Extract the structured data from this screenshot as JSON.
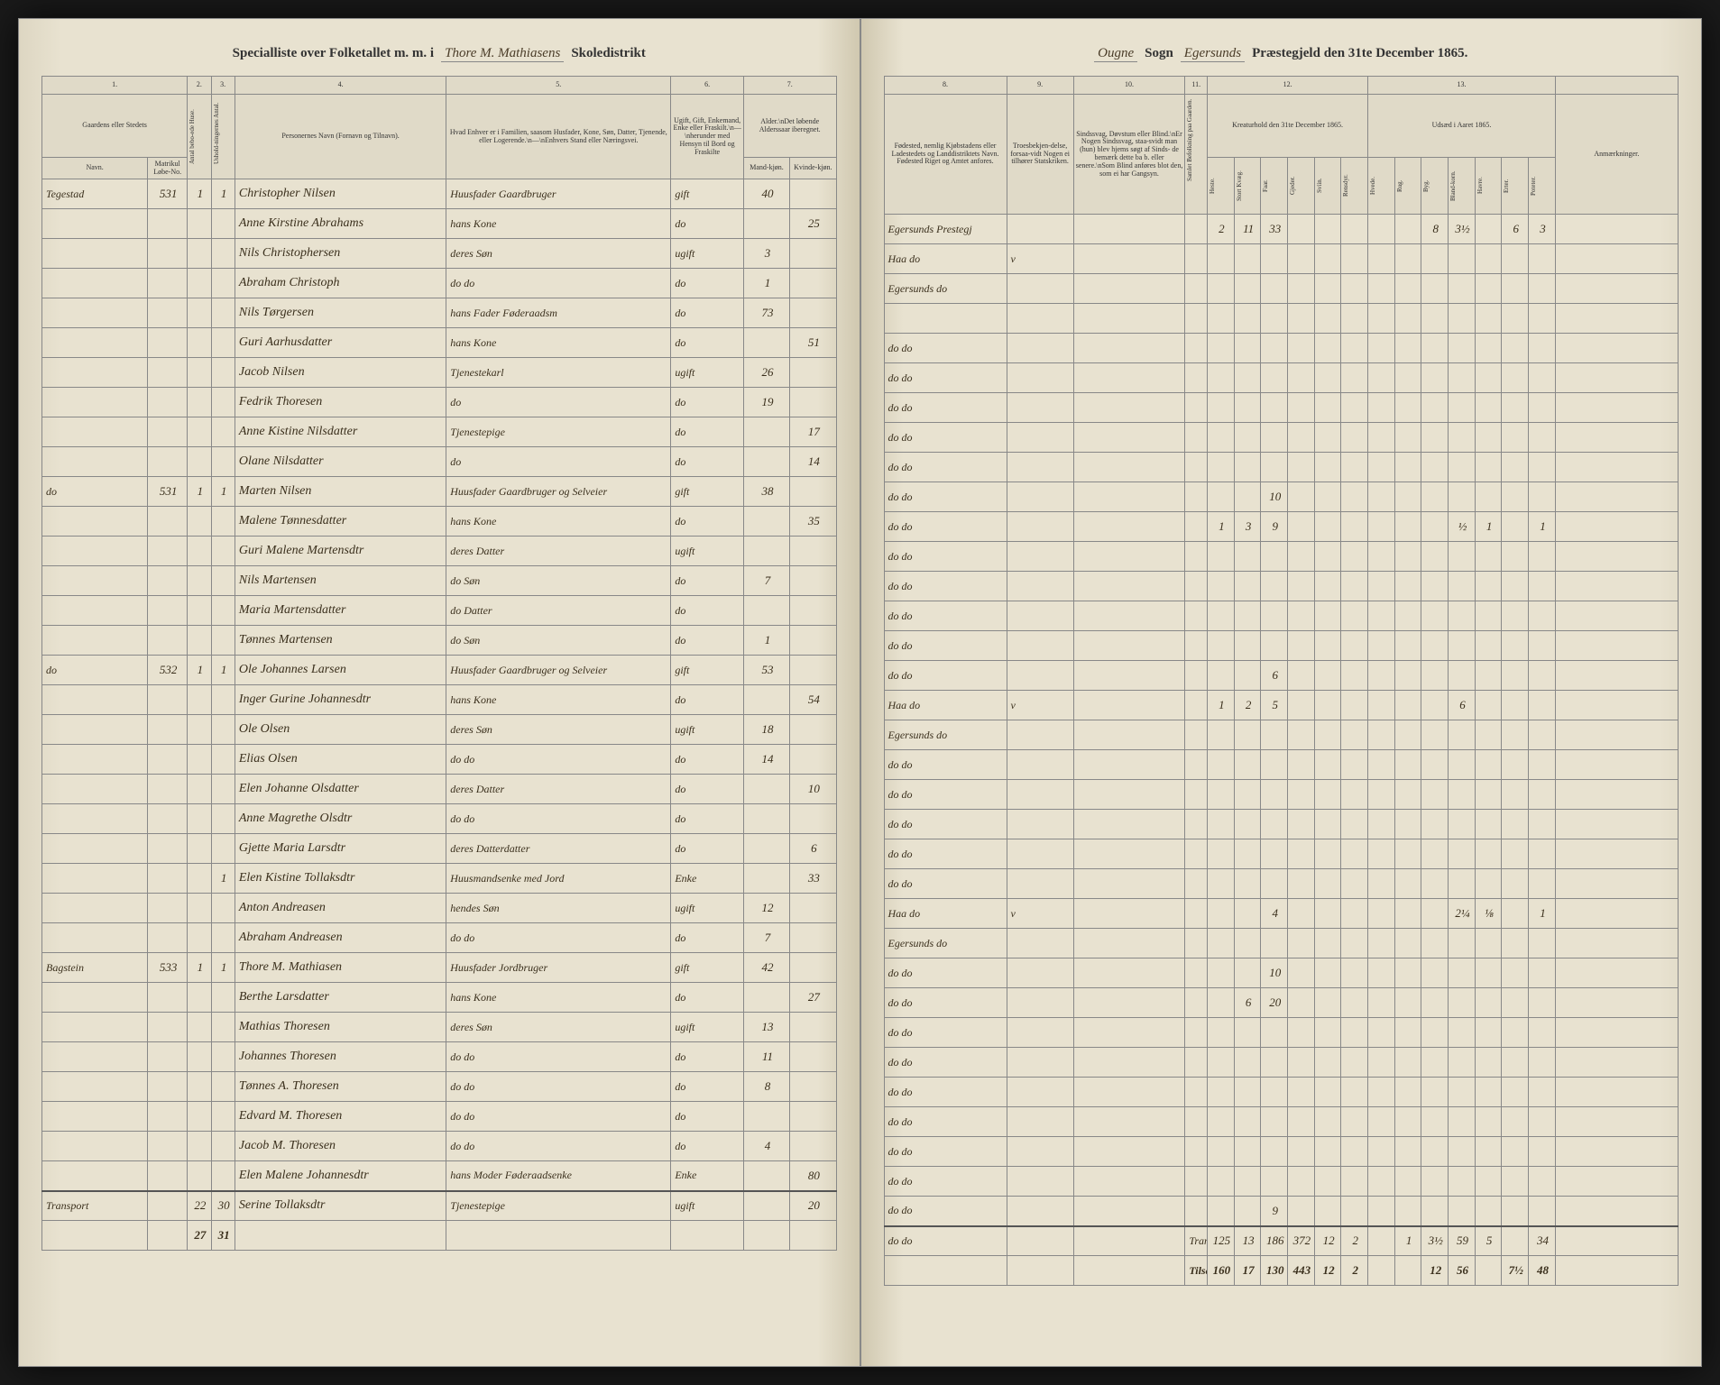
{
  "header_left": {
    "printed1": "Specialliste over Folketallet m. m. i",
    "written": "Thore M. Mathiasens",
    "printed2": "Skoledistrikt"
  },
  "header_right": {
    "written1": "Ougne",
    "printed1": "Sogn",
    "written2": "Egersunds",
    "printed2": "Præstegjeld den 31te December 1865."
  },
  "columns_left": {
    "c1": "1.",
    "c2": "2.",
    "c3": "3.",
    "c4": "4.",
    "c5": "5.",
    "c6": "6.",
    "c7": "7.",
    "d1": "Gaardens eller Stedets",
    "d2": "",
    "d3": "",
    "d4": "Personernes Navn (Fornavn og Tilnavn).",
    "d5": "Hvad Enhver er i Familien, saasom Husfader, Kone, Søn, Datter, Tjenende, eller Logerende.\\n—\\nEnhvers Stand eller Næringsvei.",
    "d6": "Ugift, Gift, Enkemand, Enke eller Fraskilt.\\n—\\nherunder med Hensyn til Bord og Fraskilte",
    "d7": "Alder.\\nDet løbende Alderssaar iberegnet.",
    "s1a": "Navn.",
    "s1b": "Matrikul Løbe-No.",
    "s2": "Antal bebo-ede Huse.",
    "s3": "Ushold-ningernes Antal.",
    "s7a": "Mand-kjøn.",
    "s7b": "Kvinde-kjøn."
  },
  "columns_right": {
    "c8": "8.",
    "c9": "9.",
    "c10": "10.",
    "c11": "11.",
    "c12": "12.",
    "c13": "13.",
    "d8": "Fødested, nemlig Kjøbstadens eller Ladestedets og Landdistriktets Navn. Fødested Riget og Amtet anfores.",
    "d9": "Troesbekjen-delse, forsaa-vidt Nogen ei tilhører Statskriken.",
    "d10": "Sindssvag, Døvstum eller Blind.\\nEr Nogen Sindssvag, staa-svidt man (hun) blev hjems søgt af Sinds- de bemærk dette ba b. eller senere.\\nSom Blind anføres blot den, som ei har Gangsyn.",
    "d11": "",
    "d12": "Kreaturhold den 31te December 1865.",
    "d13": "Udsæd i Aaret 1865.",
    "d14": "Anmærkninger.",
    "s12": [
      "Heste.",
      "Stort Kvæg.",
      "Faar.",
      "Gjeder.",
      "Sviin.",
      "Rensdyr."
    ],
    "s13": [
      "Hvede.",
      "Rug.",
      "Byg.",
      "Bland-korn.",
      "Havre.",
      "Erter.",
      "Poteter."
    ]
  },
  "rows": [
    {
      "gaard": "Tegestad",
      "mat": "531",
      "hus": "1",
      "hh": "1",
      "navn": "Christopher Nilsen",
      "fam": "Huusfader Gaardbruger",
      "stat": "gift",
      "mk": "40",
      "kk": "",
      "fod": "Egersunds Prestegj",
      "tro": "",
      "sind": "",
      "h": "2",
      "sk": "11",
      "f": "33",
      "g": "",
      "sv": "",
      "rn": "",
      "hv": "",
      "ru": "",
      "by": "8",
      "bl": "3½",
      "ha": "",
      "er": "6",
      "po": "3"
    },
    {
      "gaard": "",
      "mat": "",
      "hus": "",
      "hh": "",
      "navn": "Anne Kirstine Abrahams",
      "fam": "hans Kone",
      "stat": "do",
      "mk": "",
      "kk": "25",
      "fod": "Haa do",
      "tro": "v",
      "sind": "",
      "h": "",
      "sk": "",
      "f": "",
      "g": "",
      "sv": "",
      "rn": "",
      "hv": "",
      "ru": "",
      "by": "",
      "bl": "",
      "ha": "",
      "er": "",
      "po": ""
    },
    {
      "gaard": "",
      "mat": "",
      "hus": "",
      "hh": "",
      "navn": "Nils Christophersen",
      "fam": "deres Søn",
      "stat": "ugift",
      "mk": "3",
      "kk": "",
      "fod": "Egersunds do",
      "tro": "",
      "sind": "",
      "h": "",
      "sk": "",
      "f": "",
      "g": "",
      "sv": "",
      "rn": "",
      "hv": "",
      "ru": "",
      "by": "",
      "bl": "",
      "ha": "",
      "er": "",
      "po": ""
    },
    {
      "gaard": "",
      "mat": "",
      "hus": "",
      "hh": "",
      "navn": "Abraham Christoph",
      "fam": "do do",
      "stat": "do",
      "mk": "1",
      "kk": "",
      "fod": "",
      "tro": "",
      "sind": "",
      "h": "",
      "sk": "",
      "f": "",
      "g": "",
      "sv": "",
      "rn": "",
      "hv": "",
      "ru": "",
      "by": "",
      "bl": "",
      "ha": "",
      "er": "",
      "po": ""
    },
    {
      "gaard": "",
      "mat": "",
      "hus": "",
      "hh": "",
      "navn": "Nils Tørgersen",
      "fam": "hans Fader Føderaadsm",
      "stat": "do",
      "mk": "73",
      "kk": "",
      "fod": "do do",
      "tro": "",
      "sind": "",
      "h": "",
      "sk": "",
      "f": "",
      "g": "",
      "sv": "",
      "rn": "",
      "hv": "",
      "ru": "",
      "by": "",
      "bl": "",
      "ha": "",
      "er": "",
      "po": ""
    },
    {
      "gaard": "",
      "mat": "",
      "hus": "",
      "hh": "",
      "navn": "Guri Aarhusdatter",
      "fam": "hans Kone",
      "stat": "do",
      "mk": "",
      "kk": "51",
      "fod": "do do",
      "tro": "",
      "sind": "",
      "h": "",
      "sk": "",
      "f": "",
      "g": "",
      "sv": "",
      "rn": "",
      "hv": "",
      "ru": "",
      "by": "",
      "bl": "",
      "ha": "",
      "er": "",
      "po": ""
    },
    {
      "gaard": "",
      "mat": "",
      "hus": "",
      "hh": "",
      "navn": "Jacob Nilsen",
      "fam": "Tjenestekarl",
      "stat": "ugift",
      "mk": "26",
      "kk": "",
      "fod": "do do",
      "tro": "",
      "sind": "",
      "h": "",
      "sk": "",
      "f": "",
      "g": "",
      "sv": "",
      "rn": "",
      "hv": "",
      "ru": "",
      "by": "",
      "bl": "",
      "ha": "",
      "er": "",
      "po": ""
    },
    {
      "gaard": "",
      "mat": "",
      "hus": "",
      "hh": "",
      "navn": "Fedrik Thoresen",
      "fam": "do",
      "stat": "do",
      "mk": "19",
      "kk": "",
      "fod": "do do",
      "tro": "",
      "sind": "",
      "h": "",
      "sk": "",
      "f": "",
      "g": "",
      "sv": "",
      "rn": "",
      "hv": "",
      "ru": "",
      "by": "",
      "bl": "",
      "ha": "",
      "er": "",
      "po": ""
    },
    {
      "gaard": "",
      "mat": "",
      "hus": "",
      "hh": "",
      "navn": "Anne Kistine Nilsdatter",
      "fam": "Tjenestepige",
      "stat": "do",
      "mk": "",
      "kk": "17",
      "fod": "do do",
      "tro": "",
      "sind": "",
      "h": "",
      "sk": "",
      "f": "",
      "g": "",
      "sv": "",
      "rn": "",
      "hv": "",
      "ru": "",
      "by": "",
      "bl": "",
      "ha": "",
      "er": "",
      "po": ""
    },
    {
      "gaard": "",
      "mat": "",
      "hus": "",
      "hh": "",
      "navn": "Olane Nilsdatter",
      "fam": "do",
      "stat": "do",
      "mk": "",
      "kk": "14",
      "fod": "do do",
      "tro": "",
      "sind": "",
      "h": "",
      "sk": "",
      "f": "10",
      "g": "",
      "sv": "",
      "rn": "",
      "hv": "",
      "ru": "",
      "by": "",
      "bl": "",
      "ha": "",
      "er": "",
      "po": ""
    },
    {
      "gaard": "do",
      "mat": "531",
      "hus": "1",
      "hh": "1",
      "navn": "Marten Nilsen",
      "fam": "Huusfader Gaardbruger og Selveier",
      "stat": "gift",
      "mk": "38",
      "kk": "",
      "fod": "do do",
      "tro": "",
      "sind": "",
      "h": "1",
      "sk": "3",
      "f": "9",
      "g": "",
      "sv": "",
      "rn": "",
      "hv": "",
      "ru": "",
      "by": "",
      "bl": "½",
      "ha": "1",
      "er": "",
      "po": "1"
    },
    {
      "gaard": "",
      "mat": "",
      "hus": "",
      "hh": "",
      "navn": "Malene Tønnesdatter",
      "fam": "hans Kone",
      "stat": "do",
      "mk": "",
      "kk": "35",
      "fod": "do do",
      "tro": "",
      "sind": "",
      "h": "",
      "sk": "",
      "f": "",
      "g": "",
      "sv": "",
      "rn": "",
      "hv": "",
      "ru": "",
      "by": "",
      "bl": "",
      "ha": "",
      "er": "",
      "po": ""
    },
    {
      "gaard": "",
      "mat": "",
      "hus": "",
      "hh": "",
      "navn": "Guri Malene Martensdtr",
      "fam": "deres Datter",
      "stat": "ugift",
      "mk": "",
      "kk": "",
      "fod": "do do",
      "tro": "",
      "sind": "",
      "h": "",
      "sk": "",
      "f": "",
      "g": "",
      "sv": "",
      "rn": "",
      "hv": "",
      "ru": "",
      "by": "",
      "bl": "",
      "ha": "",
      "er": "",
      "po": ""
    },
    {
      "gaard": "",
      "mat": "",
      "hus": "",
      "hh": "",
      "navn": "Nils Martensen",
      "fam": "do Søn",
      "stat": "do",
      "mk": "7",
      "kk": "",
      "fod": "do do",
      "tro": "",
      "sind": "",
      "h": "",
      "sk": "",
      "f": "",
      "g": "",
      "sv": "",
      "rn": "",
      "hv": "",
      "ru": "",
      "by": "",
      "bl": "",
      "ha": "",
      "er": "",
      "po": ""
    },
    {
      "gaard": "",
      "mat": "",
      "hus": "",
      "hh": "",
      "navn": "Maria Martensdatter",
      "fam": "do Datter",
      "stat": "do",
      "mk": "",
      "kk": "",
      "fod": "do do",
      "tro": "",
      "sind": "",
      "h": "",
      "sk": "",
      "f": "",
      "g": "",
      "sv": "",
      "rn": "",
      "hv": "",
      "ru": "",
      "by": "",
      "bl": "",
      "ha": "",
      "er": "",
      "po": ""
    },
    {
      "gaard": "",
      "mat": "",
      "hus": "",
      "hh": "",
      "navn": "Tønnes Martensen",
      "fam": "do Søn",
      "stat": "do",
      "mk": "1",
      "kk": "",
      "fod": "do do",
      "tro": "",
      "sind": "",
      "h": "",
      "sk": "",
      "f": "6",
      "g": "",
      "sv": "",
      "rn": "",
      "hv": "",
      "ru": "",
      "by": "",
      "bl": "",
      "ha": "",
      "er": "",
      "po": ""
    },
    {
      "gaard": "do",
      "mat": "532",
      "hus": "1",
      "hh": "1",
      "navn": "Ole Johannes Larsen",
      "fam": "Huusfader Gaardbruger og Selveier",
      "stat": "gift",
      "mk": "53",
      "kk": "",
      "fod": "Haa do",
      "tro": "v",
      "sind": "",
      "h": "1",
      "sk": "2",
      "f": "5",
      "g": "",
      "sv": "",
      "rn": "",
      "hv": "",
      "ru": "",
      "by": "",
      "bl": "6",
      "ha": "",
      "er": "",
      "po": ""
    },
    {
      "gaard": "",
      "mat": "",
      "hus": "",
      "hh": "",
      "navn": "Inger Gurine Johannesdtr",
      "fam": "hans Kone",
      "stat": "do",
      "mk": "",
      "kk": "54",
      "fod": "Egersunds do",
      "tro": "",
      "sind": "",
      "h": "",
      "sk": "",
      "f": "",
      "g": "",
      "sv": "",
      "rn": "",
      "hv": "",
      "ru": "",
      "by": "",
      "bl": "",
      "ha": "",
      "er": "",
      "po": ""
    },
    {
      "gaard": "",
      "mat": "",
      "hus": "",
      "hh": "",
      "navn": "Ole Olsen",
      "fam": "deres Søn",
      "stat": "ugift",
      "mk": "18",
      "kk": "",
      "fod": "do do",
      "tro": "",
      "sind": "",
      "h": "",
      "sk": "",
      "f": "",
      "g": "",
      "sv": "",
      "rn": "",
      "hv": "",
      "ru": "",
      "by": "",
      "bl": "",
      "ha": "",
      "er": "",
      "po": ""
    },
    {
      "gaard": "",
      "mat": "",
      "hus": "",
      "hh": "",
      "navn": "Elias Olsen",
      "fam": "do do",
      "stat": "do",
      "mk": "14",
      "kk": "",
      "fod": "do do",
      "tro": "",
      "sind": "",
      "h": "",
      "sk": "",
      "f": "",
      "g": "",
      "sv": "",
      "rn": "",
      "hv": "",
      "ru": "",
      "by": "",
      "bl": "",
      "ha": "",
      "er": "",
      "po": ""
    },
    {
      "gaard": "",
      "mat": "",
      "hus": "",
      "hh": "",
      "navn": "Elen Johanne Olsdatter",
      "fam": "deres Datter",
      "stat": "do",
      "mk": "",
      "kk": "10",
      "fod": "do do",
      "tro": "",
      "sind": "",
      "h": "",
      "sk": "",
      "f": "",
      "g": "",
      "sv": "",
      "rn": "",
      "hv": "",
      "ru": "",
      "by": "",
      "bl": "",
      "ha": "",
      "er": "",
      "po": ""
    },
    {
      "gaard": "",
      "mat": "",
      "hus": "",
      "hh": "",
      "navn": "Anne Magrethe Olsdtr",
      "fam": "do do",
      "stat": "do",
      "mk": "",
      "kk": "",
      "fod": "do do",
      "tro": "",
      "sind": "",
      "h": "",
      "sk": "",
      "f": "",
      "g": "",
      "sv": "",
      "rn": "",
      "hv": "",
      "ru": "",
      "by": "",
      "bl": "",
      "ha": "",
      "er": "",
      "po": ""
    },
    {
      "gaard": "",
      "mat": "",
      "hus": "",
      "hh": "",
      "navn": "Gjette Maria Larsdtr",
      "fam": "deres Datterdatter",
      "stat": "do",
      "mk": "",
      "kk": "6",
      "fod": "do do",
      "tro": "",
      "sind": "",
      "h": "",
      "sk": "",
      "f": "",
      "g": "",
      "sv": "",
      "rn": "",
      "hv": "",
      "ru": "",
      "by": "",
      "bl": "",
      "ha": "",
      "er": "",
      "po": ""
    },
    {
      "gaard": "",
      "mat": "",
      "hus": "",
      "hh": "1",
      "navn": "Elen Kistine Tollaksdtr",
      "fam": "Huusmandsenke med Jord",
      "stat": "Enke",
      "mk": "",
      "kk": "33",
      "fod": "Haa do",
      "tro": "v",
      "sind": "",
      "h": "",
      "sk": "",
      "f": "4",
      "g": "",
      "sv": "",
      "rn": "",
      "hv": "",
      "ru": "",
      "by": "",
      "bl": "2¼",
      "ha": "⅛",
      "er": "",
      "po": "1"
    },
    {
      "gaard": "",
      "mat": "",
      "hus": "",
      "hh": "",
      "navn": "Anton Andreasen",
      "fam": "hendes Søn",
      "stat": "ugift",
      "mk": "12",
      "kk": "",
      "fod": "Egersunds do",
      "tro": "",
      "sind": "",
      "h": "",
      "sk": "",
      "f": "",
      "g": "",
      "sv": "",
      "rn": "",
      "hv": "",
      "ru": "",
      "by": "",
      "bl": "",
      "ha": "",
      "er": "",
      "po": ""
    },
    {
      "gaard": "",
      "mat": "",
      "hus": "",
      "hh": "",
      "navn": "Abraham Andreasen",
      "fam": "do do",
      "stat": "do",
      "mk": "7",
      "kk": "",
      "fod": "do do",
      "tro": "",
      "sind": "",
      "h": "",
      "sk": "",
      "f": "10",
      "g": "",
      "sv": "",
      "rn": "",
      "hv": "",
      "ru": "",
      "by": "",
      "bl": "",
      "ha": "",
      "er": "",
      "po": ""
    },
    {
      "gaard": "Bagstein",
      "mat": "533",
      "hus": "1",
      "hh": "1",
      "navn": "Thore M. Mathiasen",
      "fam": "Huusfader Jordbruger",
      "stat": "gift",
      "mk": "42",
      "kk": "",
      "fod": "do do",
      "tro": "",
      "sind": "",
      "h": "",
      "sk": "6",
      "f": "20",
      "g": "",
      "sv": "",
      "rn": "",
      "hv": "",
      "ru": "",
      "by": "",
      "bl": "",
      "ha": "",
      "er": "",
      "po": ""
    },
    {
      "gaard": "",
      "mat": "",
      "hus": "",
      "hh": "",
      "navn": "Berthe Larsdatter",
      "fam": "hans Kone",
      "stat": "do",
      "mk": "",
      "kk": "27",
      "fod": "do do",
      "tro": "",
      "sind": "",
      "h": "",
      "sk": "",
      "f": "",
      "g": "",
      "sv": "",
      "rn": "",
      "hv": "",
      "ru": "",
      "by": "",
      "bl": "",
      "ha": "",
      "er": "",
      "po": ""
    },
    {
      "gaard": "",
      "mat": "",
      "hus": "",
      "hh": "",
      "navn": "Mathias Thoresen",
      "fam": "deres Søn",
      "stat": "ugift",
      "mk": "13",
      "kk": "",
      "fod": "do do",
      "tro": "",
      "sind": "",
      "h": "",
      "sk": "",
      "f": "",
      "g": "",
      "sv": "",
      "rn": "",
      "hv": "",
      "ru": "",
      "by": "",
      "bl": "",
      "ha": "",
      "er": "",
      "po": ""
    },
    {
      "gaard": "",
      "mat": "",
      "hus": "",
      "hh": "",
      "navn": "Johannes Thoresen",
      "fam": "do do",
      "stat": "do",
      "mk": "11",
      "kk": "",
      "fod": "do do",
      "tro": "",
      "sind": "",
      "h": "",
      "sk": "",
      "f": "",
      "g": "",
      "sv": "",
      "rn": "",
      "hv": "",
      "ru": "",
      "by": "",
      "bl": "",
      "ha": "",
      "er": "",
      "po": ""
    },
    {
      "gaard": "",
      "mat": "",
      "hus": "",
      "hh": "",
      "navn": "Tønnes A. Thoresen",
      "fam": "do do",
      "stat": "do",
      "mk": "8",
      "kk": "",
      "fod": "do do",
      "tro": "",
      "sind": "",
      "h": "",
      "sk": "",
      "f": "",
      "g": "",
      "sv": "",
      "rn": "",
      "hv": "",
      "ru": "",
      "by": "",
      "bl": "",
      "ha": "",
      "er": "",
      "po": ""
    },
    {
      "gaard": "",
      "mat": "",
      "hus": "",
      "hh": "",
      "navn": "Edvard M. Thoresen",
      "fam": "do do",
      "stat": "do",
      "mk": "",
      "kk": "",
      "fod": "do do",
      "tro": "",
      "sind": "",
      "h": "",
      "sk": "",
      "f": "",
      "g": "",
      "sv": "",
      "rn": "",
      "hv": "",
      "ru": "",
      "by": "",
      "bl": "",
      "ha": "",
      "er": "",
      "po": ""
    },
    {
      "gaard": "",
      "mat": "",
      "hus": "",
      "hh": "",
      "navn": "Jacob M. Thoresen",
      "fam": "do do",
      "stat": "do",
      "mk": "4",
      "kk": "",
      "fod": "do do",
      "tro": "",
      "sind": "",
      "h": "",
      "sk": "",
      "f": "",
      "g": "",
      "sv": "",
      "rn": "",
      "hv": "",
      "ru": "",
      "by": "",
      "bl": "",
      "ha": "",
      "er": "",
      "po": ""
    },
    {
      "gaard": "",
      "mat": "",
      "hus": "",
      "hh": "",
      "navn": "Elen Malene Johannesdtr",
      "fam": "hans Moder Føderaadsenke",
      "stat": "Enke",
      "mk": "",
      "kk": "80",
      "fod": "do do",
      "tro": "",
      "sind": "",
      "h": "",
      "sk": "",
      "f": "9",
      "g": "",
      "sv": "",
      "rn": "",
      "hv": "",
      "ru": "",
      "by": "",
      "bl": "",
      "ha": "",
      "er": "",
      "po": ""
    }
  ],
  "transport_row": {
    "label": "Transport",
    "hus": "22",
    "hh": "30",
    "navn": "Serine Tollaksdtr",
    "fam": "Tjenestepige",
    "stat": "ugift",
    "mk": "",
    "kk": "20",
    "fod": "do do",
    "tro": "",
    "sind": "",
    "tlabel": "Transport",
    "h": "125",
    "sk": "13",
    "f": "186",
    "g": "372",
    "sv": "12",
    "rn": "2",
    "hv": "",
    "ru": "1",
    "by": "3½",
    "bl": "59",
    "ha": "5",
    "er": "",
    "po": "34"
  },
  "sum_row": {
    "hus": "27",
    "hh": "31",
    "label": "Tilsammen",
    "h": "160",
    "sk": "17",
    "f": "130",
    "g": "443",
    "sv": "12",
    "rn": "2",
    "hv": "",
    "ru": "",
    "by": "12",
    "bl": "56",
    "ha": "",
    "er": "7½",
    "po": "48"
  }
}
